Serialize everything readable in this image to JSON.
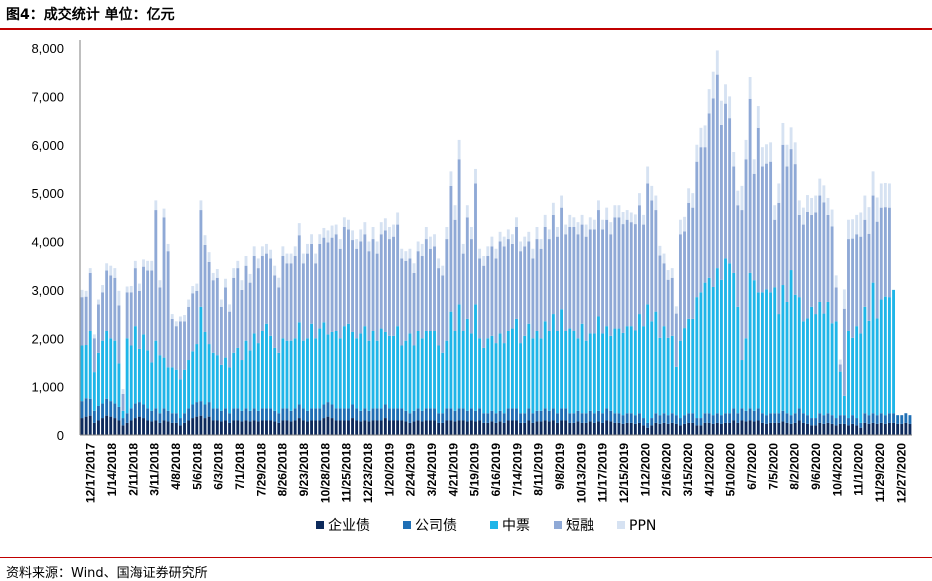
{
  "header": {
    "title": "图4：成交统计 单位：亿元"
  },
  "footer": {
    "source": "资料来源：Wind、国海证券研究所"
  },
  "chart_data": {
    "type": "bar",
    "stacked": true,
    "title": "图4：成交统计 单位：亿元",
    "ylim": [
      0,
      8000
    ],
    "yticks": [
      0,
      1000,
      2000,
      3000,
      4000,
      5000,
      6000,
      7000,
      8000
    ],
    "ytick_labels": [
      "0",
      "1,000",
      "2,000",
      "3,000",
      "4,000",
      "5,000",
      "6,000",
      "7,000",
      "8,000"
    ],
    "xtick_labels": [
      "12/17/2017",
      "1/14/2018",
      "2/11/2018",
      "3/11/2018",
      "4/8/2018",
      "5/6/2018",
      "6/3/2018",
      "7/1/2018",
      "7/29/2018",
      "8/26/2018",
      "9/23/2018",
      "10/28/2018",
      "11/25/2018",
      "12/23/2018",
      "1/20/2019",
      "2/24/2019",
      "3/24/2019",
      "4/21/2019",
      "5/19/2019",
      "6/16/2019",
      "7/14/2019",
      "8/11/2019",
      "9/8/2019",
      "10/13/2019",
      "11/17/2019",
      "12/15/2019",
      "1/12/2020",
      "2/16/2020",
      "3/15/2020",
      "4/12/2020",
      "5/10/2020",
      "6/7/2020",
      "7/5/2020",
      "8/2/2020",
      "9/6/2020",
      "10/4/2020",
      "11/1/2020",
      "11/29/2020",
      "12/27/2020"
    ],
    "legend_position": "bottom",
    "grid": false,
    "colors": {
      "企业债": "#0d2a5c",
      "公司债": "#1f6fb5",
      "中票": "#1fb5e8",
      "短融": "#8fa9d6",
      "PPN": "#d6e2f2"
    },
    "series": [
      {
        "name": "企业债",
        "values": [
          350,
          380,
          400,
          250,
          300,
          350,
          400,
          380,
          350,
          300,
          200,
          250,
          300,
          350,
          380,
          350,
          300,
          280,
          300,
          250,
          300,
          280,
          250,
          250,
          200,
          250,
          300,
          350,
          380,
          400,
          350,
          380,
          300,
          300,
          280,
          300,
          250,
          300,
          300,
          280,
          300,
          280,
          300,
          280,
          300,
          300,
          300,
          280,
          250,
          300,
          300,
          280,
          300,
          350,
          300,
          280,
          300,
          300,
          300,
          350,
          380,
          350,
          300,
          300,
          300,
          300,
          350,
          300,
          280,
          300,
          280,
          300,
          300,
          300,
          350,
          300,
          300,
          300,
          300,
          280,
          250,
          280,
          300,
          280,
          300,
          300,
          300,
          250,
          250,
          300,
          300,
          280,
          300,
          300,
          280,
          300,
          280,
          300,
          250,
          250,
          280,
          250,
          280,
          250,
          300,
          300,
          300,
          250,
          250,
          300,
          250,
          280,
          280,
          300,
          280,
          300,
          250,
          300,
          300,
          250,
          250,
          280,
          250,
          250,
          280,
          250,
          280,
          250,
          300,
          280,
          250,
          250,
          230,
          250,
          250,
          230,
          250,
          200,
          150,
          200,
          250,
          230,
          250,
          230,
          250,
          230,
          200,
          230,
          250,
          250,
          200,
          200,
          250,
          250,
          230,
          250,
          230,
          250,
          250,
          300,
          250,
          300,
          280,
          300,
          280,
          300,
          250,
          230,
          250,
          250,
          250,
          280,
          250,
          230,
          250,
          300,
          250,
          230,
          200,
          200,
          250,
          230,
          250,
          230,
          200,
          230,
          230,
          200,
          230,
          200,
          150,
          250,
          230,
          250,
          230,
          250,
          230,
          250,
          250,
          230,
          230,
          250,
          230
        ]
      },
      {
        "name": "公司债",
        "values": [
          350,
          380,
          350,
          250,
          300,
          300,
          350,
          320,
          300,
          280,
          150,
          200,
          250,
          300,
          300,
          280,
          250,
          220,
          250,
          200,
          250,
          220,
          200,
          200,
          150,
          200,
          250,
          280,
          300,
          300,
          280,
          300,
          250,
          250,
          220,
          250,
          200,
          250,
          250,
          220,
          250,
          220,
          250,
          220,
          250,
          250,
          250,
          220,
          200,
          250,
          250,
          220,
          250,
          280,
          250,
          220,
          250,
          250,
          250,
          280,
          300,
          280,
          250,
          250,
          250,
          250,
          280,
          250,
          220,
          250,
          220,
          250,
          250,
          250,
          280,
          250,
          250,
          250,
          250,
          220,
          200,
          220,
          250,
          220,
          250,
          250,
          250,
          200,
          200,
          250,
          250,
          220,
          250,
          250,
          220,
          250,
          220,
          250,
          200,
          200,
          220,
          200,
          220,
          200,
          250,
          250,
          250,
          200,
          200,
          250,
          200,
          220,
          220,
          250,
          220,
          250,
          200,
          250,
          250,
          200,
          200,
          220,
          200,
          200,
          220,
          200,
          220,
          200,
          250,
          220,
          200,
          200,
          180,
          200,
          200,
          180,
          200,
          150,
          100,
          150,
          200,
          180,
          200,
          180,
          200,
          180,
          150,
          180,
          200,
          200,
          150,
          150,
          200,
          200,
          180,
          200,
          180,
          200,
          200,
          250,
          200,
          250,
          220,
          250,
          220,
          250,
          200,
          180,
          200,
          200,
          200,
          220,
          200,
          180,
          200,
          250,
          200,
          180,
          150,
          150,
          200,
          180,
          200,
          180,
          150,
          180,
          180,
          150,
          180,
          150,
          100,
          200,
          180,
          200,
          180,
          200,
          180,
          200,
          200,
          180,
          180,
          200,
          180
        ]
      },
      {
        "name": "中票",
        "values": [
          1150,
          1100,
          1400,
          800,
          1100,
          1300,
          1400,
          1300,
          1300,
          900,
          150,
          1550,
          1300,
          1600,
          1100,
          1450,
          1200,
          1000,
          1400,
          1200,
          1050,
          900,
          950,
          900,
          800,
          900,
          1000,
          1100,
          1200,
          1950,
          1500,
          1200,
          1150,
          1100,
          950,
          1050,
          950,
          1150,
          1250,
          1050,
          1400,
          1250,
          1550,
          1400,
          1600,
          1750,
          1500,
          1300,
          1250,
          1450,
          1400,
          1450,
          1450,
          1700,
          1400,
          1500,
          1750,
          1450,
          1650,
          1700,
          1400,
          1500,
          1600,
          1450,
          1700,
          1750,
          1500,
          1450,
          1600,
          1700,
          1450,
          1600,
          1400,
          1650,
          1500,
          1500,
          1500,
          1700,
          1300,
          1450,
          1650,
          1350,
          1600,
          1500,
          1600,
          1600,
          1600,
          1400,
          1250,
          1400,
          2000,
          1650,
          2150,
          1600,
          1900,
          1550,
          2200,
          1450,
          1350,
          1550,
          1550,
          1450,
          1600,
          1450,
          1600,
          1650,
          1850,
          1450,
          1600,
          1750,
          1550,
          1650,
          1500,
          1800,
          1650,
          1950,
          1700,
          2050,
          1600,
          1750,
          1700,
          1500,
          1850,
          1500,
          1600,
          1650,
          1950,
          1650,
          1700,
          1550,
          1750,
          1750,
          1700,
          1800,
          1800,
          1750,
          2050,
          1900,
          2450,
          2000,
          2100,
          1600,
          1800,
          1600,
          1600,
          1000,
          1600,
          1800,
          1950,
          1950,
          2500,
          2600,
          2700,
          2800,
          2650,
          3000,
          2800,
          3200,
          3100,
          2800,
          2200,
          1000,
          1500,
          2800,
          2700,
          2400,
          2500,
          2600,
          2500,
          2600,
          2050,
          2600,
          2300,
          3000,
          2450,
          2300,
          1900,
          2000,
          2300,
          2150,
          2300,
          2100,
          2300,
          1900,
          2000,
          900,
          400,
          1800,
          1600,
          1900,
          1850,
          2200,
          1950,
          2700,
          2000,
          2350,
          2450,
          2400,
          2550
        ]
      },
      {
        "name": "短融",
        "values": [
          1000,
          1000,
          1200,
          700,
          1000,
          1000,
          1250,
          1300,
          1300,
          1200,
          350,
          950,
          1100,
          1200,
          1200,
          1400,
          1650,
          1900,
          2700,
          1400,
          2900,
          2400,
          1000,
          900,
          1200,
          1000,
          1100,
          1200,
          1100,
          2000,
          1800,
          1700,
          1500,
          1600,
          1200,
          1450,
          1150,
          1550,
          1650,
          1450,
          1550,
          1400,
          1600,
          1550,
          1550,
          1450,
          1600,
          1500,
          1350,
          1700,
          1600,
          1600,
          1700,
          1800,
          1600,
          1750,
          1650,
          1550,
          1750,
          1750,
          1900,
          1950,
          2000,
          1850,
          2050,
          1950,
          1900,
          1850,
          1900,
          1900,
          1850,
          1900,
          1800,
          1950,
          2100,
          2000,
          2050,
          2100,
          1800,
          1650,
          1550,
          1500,
          1650,
          1700,
          1900,
          1700,
          1750,
          1600,
          1600,
          2100,
          2600,
          2300,
          3000,
          1600,
          2100,
          1950,
          2500,
          1650,
          1700,
          1700,
          1850,
          1750,
          1900,
          2000,
          1900,
          1750,
          1900,
          1900,
          1850,
          1700,
          1650,
          1900,
          1850,
          1950,
          1900,
          2050,
          1950,
          2100,
          2000,
          2100,
          2150,
          2150,
          2050,
          2150,
          2150,
          2150,
          2200,
          2150,
          2200,
          2100,
          2300,
          2300,
          2250,
          2200,
          2150,
          2200,
          2250,
          2100,
          2500,
          2500,
          2100,
          1700,
          1300,
          1200,
          1200,
          1100,
          2200,
          2000,
          2400,
          2300,
          2800,
          3000,
          2800,
          3400,
          3900,
          4000,
          3200,
          3200,
          3000,
          2200,
          2100,
          3100,
          3700,
          3600,
          2200,
          3400,
          2600,
          2600,
          2700,
          1400,
          2300,
          2900,
          2800,
          2500,
          2700,
          1700,
          2000,
          2200,
          1900,
          2100,
          2200,
          2300,
          1800,
          2000,
          700,
          150,
          1800,
          1900,
          2050,
          1900,
          2000,
          1800,
          1800,
          1800,
          2000,
          1900,
          1850,
          1850
        ]
      },
      {
        "name": "PPN",
        "values": [
          150,
          120,
          100,
          80,
          100,
          150,
          150,
          200,
          200,
          300,
          100,
          120,
          130,
          150,
          150,
          150,
          200,
          200,
          200,
          150,
          180,
          150,
          100,
          100,
          100,
          130,
          150,
          150,
          150,
          200,
          200,
          200,
          150,
          180,
          150,
          180,
          150,
          200,
          150,
          200,
          200,
          180,
          200,
          200,
          200,
          200,
          180,
          200,
          200,
          200,
          200,
          200,
          200,
          250,
          200,
          200,
          200,
          200,
          200,
          200,
          250,
          250,
          200,
          200,
          200,
          200,
          200,
          200,
          250,
          250,
          200,
          250,
          250,
          250,
          250,
          250,
          250,
          250,
          200,
          200,
          200,
          200,
          200,
          250,
          250,
          250,
          250,
          200,
          200,
          250,
          300,
          300,
          400,
          200,
          250,
          250,
          300,
          200,
          200,
          200,
          200,
          200,
          200,
          200,
          200,
          200,
          200,
          200,
          200,
          200,
          200,
          250,
          200,
          250,
          200,
          250,
          200,
          250,
          200,
          250,
          200,
          250,
          200,
          250,
          250,
          200,
          200,
          200,
          250,
          250,
          250,
          250,
          250,
          200,
          200,
          200,
          250,
          200,
          350,
          300,
          300,
          200,
          200,
          200,
          200,
          150,
          300,
          300,
          300,
          300,
          350,
          400,
          450,
          500,
          550,
          500,
          500,
          400,
          450,
          300,
          300,
          500,
          400,
          450,
          300,
          450,
          400,
          400,
          400,
          300,
          400,
          450,
          450,
          450,
          450,
          300,
          350,
          350,
          350,
          350,
          350,
          350,
          350,
          350,
          250,
          100,
          400,
          400,
          400,
          400,
          500,
          500,
          550,
          500,
          500,
          500,
          500,
          500
        ]
      }
    ]
  }
}
